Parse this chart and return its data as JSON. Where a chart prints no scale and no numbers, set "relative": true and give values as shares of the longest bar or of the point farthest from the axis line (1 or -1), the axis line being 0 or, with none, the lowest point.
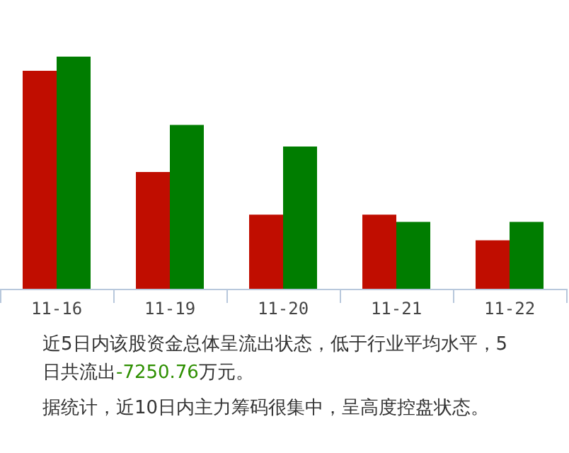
{
  "chart_data": {
    "type": "bar",
    "relative": true,
    "categories": [
      "11-16",
      "11-19",
      "11-20",
      "11-21",
      "11-22"
    ],
    "series": [
      {
        "color": "#c00d00",
        "values": [
          0.939,
          0.503,
          0.319,
          0.319,
          0.209
        ]
      },
      {
        "color": "#007d00",
        "values": [
          1,
          0.706,
          0.613,
          0.288,
          0.288
        ]
      }
    ],
    "grid": false,
    "annotations": [
      "近5日内该股资金总体呈流出状态，低于行业平均水平，5日共流出-7250.76万元。",
      "据统计，近10日内主力筹码很集中，呈高度控盘状态。"
    ]
  }
}
